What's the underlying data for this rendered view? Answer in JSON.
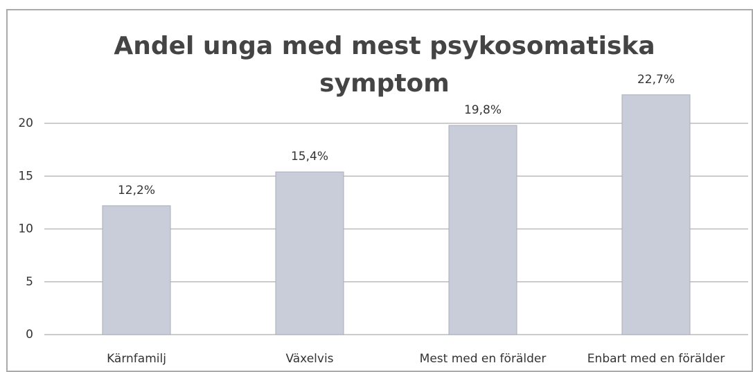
{
  "chart_data": {
    "type": "bar",
    "title": "Andel unga med mest psykosomatiska symptom",
    "categories": [
      "Kärnfamilj",
      "Växelvis",
      "Mest med en förälder",
      "Enbart med en förälder"
    ],
    "values": [
      12.2,
      15.4,
      19.8,
      22.7
    ],
    "value_labels": [
      "12,2%",
      "15,4%",
      "19,8%",
      "22,7%"
    ],
    "color": "#c9cdd9",
    "ylim": [
      0,
      20
    ],
    "yticks": [
      0,
      5,
      10,
      15,
      20
    ],
    "grid": true
  }
}
